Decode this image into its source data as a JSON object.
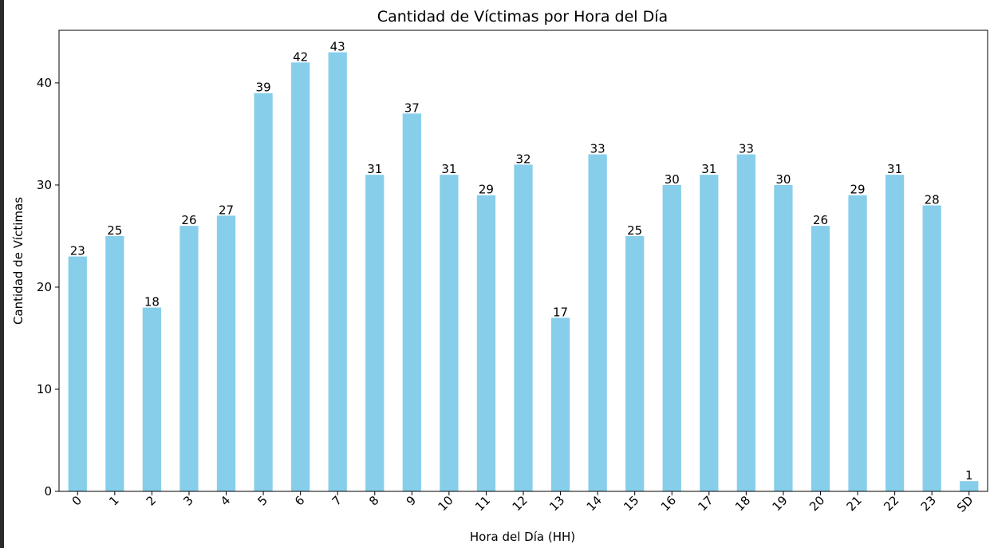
{
  "chart_data": {
    "type": "bar",
    "title": "Cantidad de Víctimas por Hora del Día",
    "xlabel": "Hora del Día (HH)",
    "ylabel": "Cantidad de Víctimas",
    "categories": [
      "0",
      "1",
      "2",
      "3",
      "4",
      "5",
      "6",
      "7",
      "8",
      "9",
      "10",
      "11",
      "12",
      "13",
      "14",
      "15",
      "16",
      "17",
      "18",
      "19",
      "20",
      "21",
      "22",
      "23",
      "SD"
    ],
    "values": [
      23,
      25,
      18,
      26,
      27,
      39,
      42,
      43,
      31,
      37,
      31,
      29,
      32,
      17,
      33,
      25,
      30,
      31,
      33,
      30,
      26,
      29,
      31,
      28,
      1
    ],
    "ylim": [
      0,
      45.15
    ],
    "yticks": [
      0,
      10,
      20,
      30,
      40
    ],
    "grid": false,
    "bar_color": "#87ceeb",
    "xtick_rotation_deg": 45,
    "data_labels": true
  }
}
